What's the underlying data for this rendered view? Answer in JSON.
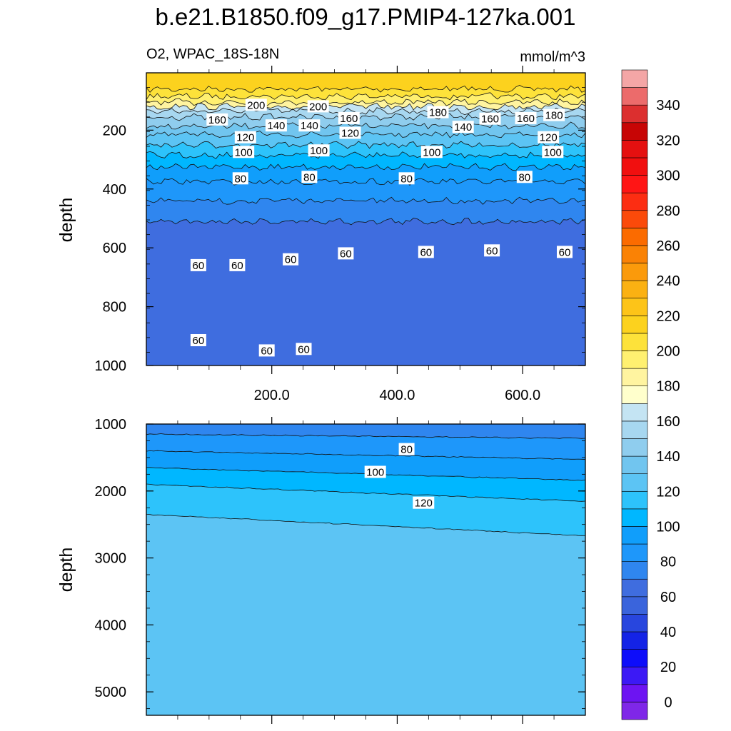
{
  "title": "b.e21.B1850.f09_g17.PMIP4-127ka.001",
  "chart_data": {
    "type": "contour",
    "variable": "O2",
    "region": "WPAC_18S-18N",
    "units": "mmol/m^3",
    "left_string": "O2, WPAC_18S-18N",
    "right_string": "mmol/m^3",
    "x_tick_labels": [
      "200.0",
      "400.0",
      "600.0"
    ],
    "x_ticks": [
      200,
      400,
      600
    ],
    "xlim": [
      0,
      700
    ],
    "panels": [
      {
        "name": "upper",
        "ylabel": "depth",
        "ylim": [
          1000,
          5
        ],
        "y_ticks": [
          200,
          400,
          600,
          800,
          1000
        ],
        "y_tick_labels": [
          "200",
          "400",
          "600",
          "800",
          "1000"
        ],
        "contour_labels": [
          {
            "text": "200",
            "x": 175,
            "y": 115
          },
          {
            "text": "200",
            "x": 274,
            "y": 120
          },
          {
            "text": "160",
            "x": 113,
            "y": 165
          },
          {
            "text": "160",
            "x": 323,
            "y": 160
          },
          {
            "text": "180",
            "x": 465,
            "y": 140
          },
          {
            "text": "160",
            "x": 548,
            "y": 162
          },
          {
            "text": "160",
            "x": 605,
            "y": 160
          },
          {
            "text": "180",
            "x": 650,
            "y": 150
          },
          {
            "text": "140",
            "x": 207,
            "y": 185
          },
          {
            "text": "140",
            "x": 260,
            "y": 185
          },
          {
            "text": "140",
            "x": 505,
            "y": 190
          },
          {
            "text": "120",
            "x": 158,
            "y": 225
          },
          {
            "text": "120",
            "x": 325,
            "y": 210
          },
          {
            "text": "120",
            "x": 641,
            "y": 225
          },
          {
            "text": "100",
            "x": 155,
            "y": 275
          },
          {
            "text": "100",
            "x": 275,
            "y": 270
          },
          {
            "text": "100",
            "x": 455,
            "y": 275
          },
          {
            "text": "100",
            "x": 648,
            "y": 275
          },
          {
            "text": "80",
            "x": 150,
            "y": 365
          },
          {
            "text": "80",
            "x": 260,
            "y": 360
          },
          {
            "text": "80",
            "x": 415,
            "y": 365
          },
          {
            "text": "80",
            "x": 603,
            "y": 360
          },
          {
            "text": "60",
            "x": 83,
            "y": 660
          },
          {
            "text": "60",
            "x": 145,
            "y": 660
          },
          {
            "text": "60",
            "x": 230,
            "y": 640
          },
          {
            "text": "60",
            "x": 318,
            "y": 620
          },
          {
            "text": "60",
            "x": 446,
            "y": 615
          },
          {
            "text": "60",
            "x": 551,
            "y": 610
          },
          {
            "text": "60",
            "x": 667,
            "y": 615
          },
          {
            "text": "60",
            "x": 83,
            "y": 915
          },
          {
            "text": "60",
            "x": 192,
            "y": 950
          },
          {
            "text": "60",
            "x": 251,
            "y": 945
          }
        ]
      },
      {
        "name": "lower",
        "ylabel": "depth",
        "ylim": [
          5350,
          1000
        ],
        "y_ticks": [
          1000,
          2000,
          3000,
          4000,
          5000
        ],
        "y_tick_labels": [
          "1000",
          "2000",
          "3000",
          "4000",
          "5000"
        ],
        "contour_labels": [
          {
            "text": "80",
            "x": 415,
            "y": 1380
          },
          {
            "text": "100",
            "x": 365,
            "y": 1720
          },
          {
            "text": "120",
            "x": 442,
            "y": 2180
          }
        ]
      }
    ],
    "colorbar": {
      "levels": [
        0,
        10,
        20,
        30,
        40,
        50,
        60,
        70,
        80,
        90,
        100,
        110,
        120,
        130,
        140,
        150,
        160,
        170,
        180,
        190,
        200,
        210,
        220,
        230,
        240,
        250,
        260,
        270,
        280,
        290,
        300,
        310,
        320,
        330,
        340,
        350
      ],
      "labels": [
        "0",
        "20",
        "40",
        "60",
        "80",
        "100",
        "120",
        "140",
        "160",
        "180",
        "200",
        "220",
        "240",
        "260",
        "280",
        "300",
        "320",
        "340"
      ],
      "colors": [
        "#7f27e8",
        "#6d14f2",
        "#3c19f5",
        "#0d0dfa",
        "#1423e6",
        "#2846de",
        "#3a64dc",
        "#3f6ddf",
        "#2f86ef",
        "#1e97fa",
        "#109efb",
        "#00b7ff",
        "#2dc3fb",
        "#5cc4f4",
        "#71c5ef",
        "#8fcdee",
        "#a7d7f0",
        "#c4e4f3",
        "#ffffcc",
        "#fff4a0",
        "#fff070",
        "#fde23a",
        "#fcd21e",
        "#fdc418",
        "#fbb112",
        "#fb9a0b",
        "#fa8205",
        "#fb6b00",
        "#fb4a0a",
        "#fc2d12",
        "#ff1515",
        "#f10f0f",
        "#e51010",
        "#c70505",
        "#dc2f2f",
        "#ec6b6b",
        "#f4a6a6"
      ]
    },
    "upper_bands": [
      {
        "depth": 5,
        "value": 210,
        "color": "#fcd21e"
      },
      {
        "depth": 60,
        "value": 195,
        "color": "#fde23a"
      },
      {
        "depth": 85,
        "value": 185,
        "color": "#fff070"
      },
      {
        "depth": 105,
        "value": 175,
        "color": "#fff4a0"
      },
      {
        "depth": 120,
        "value": 165,
        "color": "#c4e4f3"
      },
      {
        "depth": 135,
        "value": 155,
        "color": "#a7d7f0"
      },
      {
        "depth": 155,
        "value": 145,
        "color": "#8fcdee"
      },
      {
        "depth": 185,
        "value": 135,
        "color": "#71c5ef"
      },
      {
        "depth": 215,
        "value": 125,
        "color": "#5cc4f4"
      },
      {
        "depth": 250,
        "value": 115,
        "color": "#2dc3fb"
      },
      {
        "depth": 285,
        "value": 105,
        "color": "#00b7ff"
      },
      {
        "depth": 325,
        "value": 95,
        "color": "#109efb"
      },
      {
        "depth": 375,
        "value": 85,
        "color": "#1e97fa"
      },
      {
        "depth": 440,
        "value": 75,
        "color": "#2f86ef"
      },
      {
        "depth": 510,
        "value": 65,
        "color": "#3f6ddf"
      }
    ],
    "lower_bands": [
      {
        "depth": 1000,
        "value": 75,
        "color": "#2f86ef"
      },
      {
        "depth": 1150,
        "value": 80,
        "color": "#1e97fa"
      },
      {
        "depth": 1400,
        "value": 95,
        "color": "#109efb"
      },
      {
        "depth": 1650,
        "value": 105,
        "color": "#00b7ff"
      },
      {
        "depth": 1900,
        "value": 115,
        "color": "#2dc3fb"
      },
      {
        "depth": 2350,
        "value": 135,
        "color": "#5cc4f4"
      }
    ]
  }
}
